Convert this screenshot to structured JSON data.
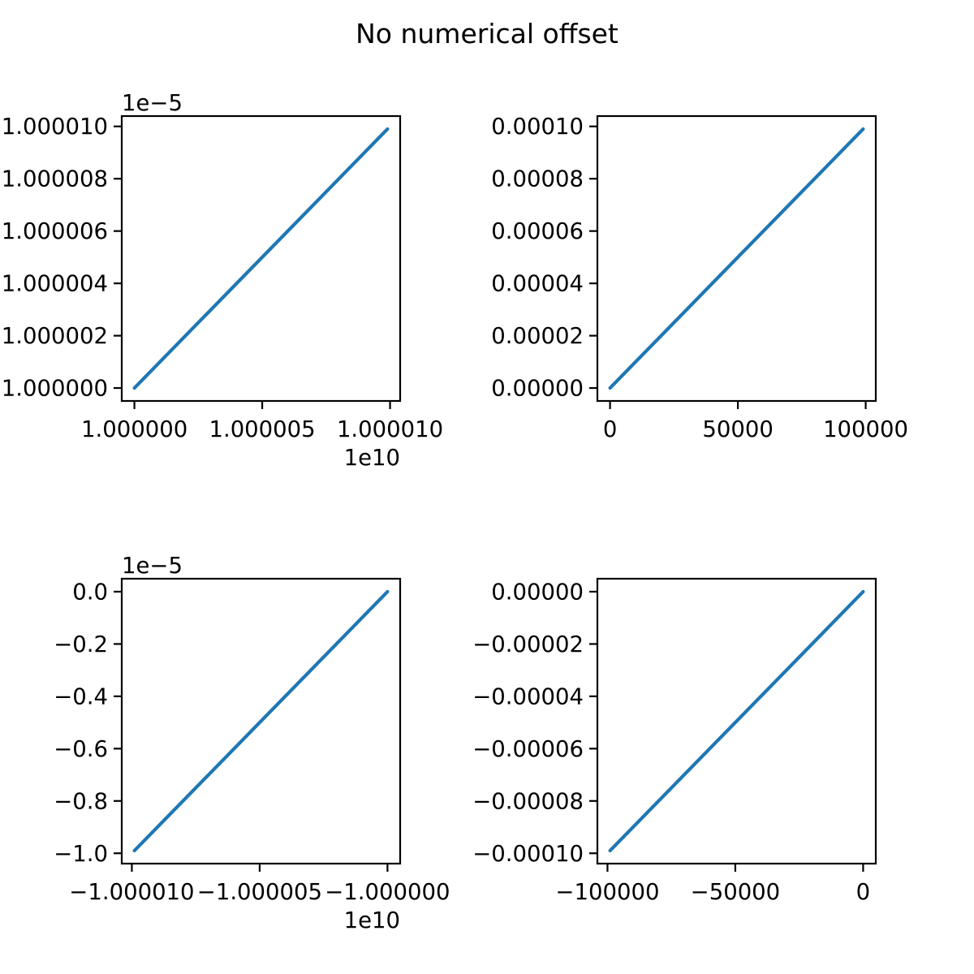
{
  "figure": {
    "title": "No numerical offset",
    "background_color": "#ffffff",
    "text_color": "#000000",
    "line_color": "#1f77b4"
  },
  "chart_data": [
    {
      "type": "line",
      "position": "top-left",
      "grid": false,
      "legend": null,
      "line": {
        "color": "#1f77b4",
        "x": [
          10000000000.0,
          10000099000.0
        ],
        "y": [
          1e-05,
          1.0000099e-05
        ]
      },
      "x_axis": {
        "tick_values": [
          10000000000.0,
          10000050000.0,
          10000100000.0
        ],
        "tick_labels": [
          "1.000000",
          "1.000005",
          "1.000010"
        ],
        "offset_text": "1e10"
      },
      "y_axis": {
        "tick_values": [
          1.00001e-05,
          1.000008e-05,
          1.000006e-05,
          1.000004e-05,
          1.000002e-05,
          1e-05
        ],
        "tick_labels": [
          "1.000010",
          "1.000008",
          "1.000006",
          "1.000004",
          "1.000002",
          "1.000000"
        ],
        "offset_text": "1e−5"
      }
    },
    {
      "type": "line",
      "position": "top-right",
      "grid": false,
      "legend": null,
      "line": {
        "color": "#1f77b4",
        "x": [
          0,
          99000
        ],
        "y": [
          0,
          9.9e-05
        ]
      },
      "x_axis": {
        "tick_values": [
          0,
          50000,
          100000
        ],
        "tick_labels": [
          "0",
          "50000",
          "100000"
        ],
        "offset_text": ""
      },
      "y_axis": {
        "tick_values": [
          0.0001,
          8e-05,
          6e-05,
          4e-05,
          2e-05,
          0
        ],
        "tick_labels": [
          "0.00010",
          "0.00008",
          "0.00006",
          "0.00004",
          "0.00002",
          "0.00000"
        ],
        "offset_text": ""
      }
    },
    {
      "type": "line",
      "position": "bottom-left",
      "grid": false,
      "legend": null,
      "line": {
        "color": "#1f77b4",
        "x": [
          -10000099000.0,
          -10000000000.0
        ],
        "y": [
          -9.9001e-06,
          -1e-10
        ]
      },
      "x_axis": {
        "tick_values": [
          -10000100000.0,
          -10000050000.0,
          -10000000000.0
        ],
        "tick_labels": [
          "−1.000010",
          "−1.000005",
          "−1.000000"
        ],
        "offset_text": "1e10"
      },
      "y_axis": {
        "tick_values": [
          0,
          -2e-06,
          -4e-06,
          -6e-06,
          -8e-06,
          -1e-05
        ],
        "tick_labels": [
          "0.0",
          "−0.2",
          "−0.4",
          "−0.6",
          "−0.8",
          "−1.0"
        ],
        "offset_text": "1e−5"
      }
    },
    {
      "type": "line",
      "position": "bottom-right",
      "grid": false,
      "legend": null,
      "line": {
        "color": "#1f77b4",
        "x": [
          -99000,
          0
        ],
        "y": [
          -9.9e-05,
          0
        ]
      },
      "x_axis": {
        "tick_values": [
          -100000,
          -50000,
          0
        ],
        "tick_labels": [
          "−100000",
          "−50000",
          "0"
        ],
        "offset_text": ""
      },
      "y_axis": {
        "tick_values": [
          0,
          -2e-05,
          -4e-05,
          -6e-05,
          -8e-05,
          -0.0001
        ],
        "tick_labels": [
          "0.00000",
          "−0.00002",
          "−0.00004",
          "−0.00006",
          "−0.00008",
          "−0.00010"
        ],
        "offset_text": ""
      }
    }
  ]
}
